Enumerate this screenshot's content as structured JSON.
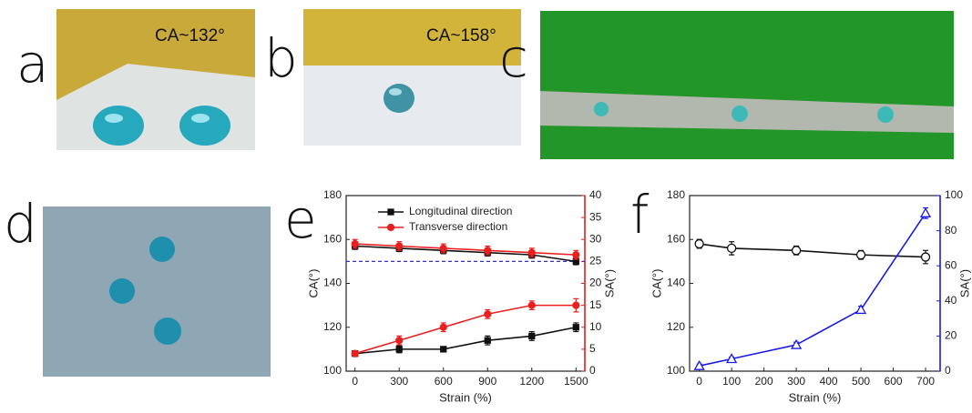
{
  "panels": [
    {
      "label": "a",
      "caption": "CA~132°"
    },
    {
      "label": "b",
      "caption": "CA~158°"
    },
    {
      "label": "c"
    },
    {
      "label": "d"
    },
    {
      "label": "e"
    },
    {
      "label": "f"
    }
  ],
  "chart_data": [
    {
      "type": "line",
      "xlabel": "Strain (%)",
      "ylabel": "CA(°)",
      "y2label": "SA(°)",
      "y2color": "#e8201f",
      "x": [
        0,
        300,
        600,
        900,
        1200,
        1500
      ],
      "xlim": [
        -60,
        1560
      ],
      "xticks": [
        0,
        300,
        600,
        900,
        1200,
        1500
      ],
      "ylim": [
        100,
        180
      ],
      "yticks": [
        100,
        120,
        140,
        160,
        180
      ],
      "y2lim": [
        0,
        40
      ],
      "y2ticks": [
        0,
        5,
        10,
        15,
        20,
        25,
        30,
        35,
        40
      ],
      "reference_line": {
        "value": 150,
        "color": "#3333cc"
      },
      "series": [
        {
          "name": "Longitudinal direction",
          "color": "#111111",
          "marker": "square",
          "values": [
            157,
            156,
            155,
            154,
            153,
            150
          ],
          "errors": [
            1.5,
            1.5,
            1.5,
            1.5,
            1.5,
            1.5
          ]
        },
        {
          "name": "Transverse direction",
          "color": "#e8201f",
          "marker": "circle",
          "values": [
            158,
            157,
            156,
            155,
            154,
            153
          ],
          "errors": [
            2,
            2,
            2,
            2,
            2,
            2
          ]
        },
        {
          "color": "#111111",
          "marker": "square",
          "axis": "y2",
          "values": [
            4,
            5,
            5,
            7,
            8,
            10
          ],
          "errors": [
            0.5,
            0.8,
            0.5,
            1,
            1,
            1
          ]
        },
        {
          "color": "#e8201f",
          "marker": "circle",
          "axis": "y2",
          "values": [
            4,
            7,
            10,
            13,
            15,
            15
          ],
          "errors": [
            0.5,
            1,
            1,
            1,
            1,
            1.5
          ]
        }
      ]
    },
    {
      "type": "line",
      "xlabel": "Strain (%)",
      "ylabel": "CA(°)",
      "y2label": "SA(°)",
      "y2color": "#1a1ae6",
      "x": [
        0,
        100,
        300,
        500,
        700
      ],
      "xlim": [
        -30,
        745
      ],
      "xticks": [
        0,
        100,
        200,
        300,
        400,
        500,
        600,
        700
      ],
      "ylim": [
        100,
        180
      ],
      "yticks": [
        100,
        120,
        140,
        160,
        180
      ],
      "y2lim": [
        0,
        100
      ],
      "y2ticks": [
        0,
        20,
        40,
        60,
        80,
        100
      ],
      "series": [
        {
          "color": "#111111",
          "marker": "open-circle",
          "values": [
            158,
            156,
            155,
            153,
            152
          ],
          "errors": [
            2,
            3,
            2,
            2,
            3
          ]
        },
        {
          "color": "#1a1ae6",
          "marker": "open-triangle",
          "axis": "y2",
          "values": [
            3,
            7,
            15,
            35,
            90
          ],
          "errors": [
            1,
            1,
            1.5,
            2,
            3
          ]
        }
      ]
    }
  ]
}
